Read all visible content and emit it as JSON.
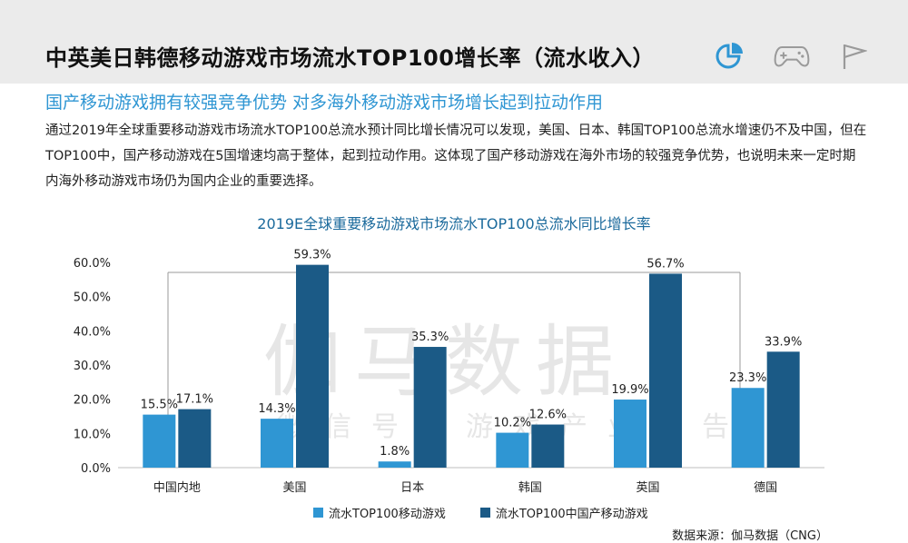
{
  "header": {
    "title": "中英美日韩德移动游戏市场流水TOP100增长率（流水收入）",
    "icons": [
      "pie-chart-icon",
      "gamepad-icon",
      "flag-icon"
    ]
  },
  "subtitle": "国产移动游戏拥有较强竞争优势  对多海外移动游戏市场增长起到拉动作用",
  "body_text": "通过2019年全球重要移动游戏市场流水TOP100总流水预计同比增长情况可以发现，美国、日本、韩国TOP100总流水增速仍不及中国，但在TOP100中，国产移动游戏在5国增速均高于整体，起到拉动作用。这体现了国产移动游戏在海外市场的较强竞争优势，也说明未来一定时期内海外移动游戏市场仍为国内企业的重要选择。",
  "watermark": {
    "main": "伽马数据",
    "sub": "微信号：游戏产业报告"
  },
  "colors": {
    "series1": "#2f96d3",
    "series2": "#1b5a86",
    "accent": "#2f96d3",
    "title": "#1b6a9c"
  },
  "chart_data": {
    "type": "bar",
    "title": "2019E全球重要移动游戏市场流水TOP100总流水同比增长率",
    "categories": [
      "中国内地",
      "美国",
      "日本",
      "韩国",
      "英国",
      "德国"
    ],
    "series": [
      {
        "name": "流水TOP100移动游戏",
        "values": [
          15.5,
          14.3,
          1.8,
          10.2,
          19.9,
          23.3
        ],
        "labels": [
          "15.5%",
          "14.3%",
          "1.8%",
          "10.2%",
          "19.9%",
          "23.3%"
        ]
      },
      {
        "name": "流水TOP100中国产移动游戏",
        "values": [
          17.1,
          59.3,
          35.3,
          12.6,
          56.7,
          33.9
        ],
        "labels": [
          "17.1%",
          "59.3%",
          "35.3%",
          "12.6%",
          "56.7%",
          "33.9%"
        ]
      }
    ],
    "yticks": [
      "0.0%",
      "10.0%",
      "20.0%",
      "30.0%",
      "40.0%",
      "50.0%",
      "60.0%"
    ],
    "ylim": [
      0,
      60
    ],
    "legend_position": "bottom",
    "grid": false
  },
  "source": "数据来源：伽马数据（CNG）"
}
